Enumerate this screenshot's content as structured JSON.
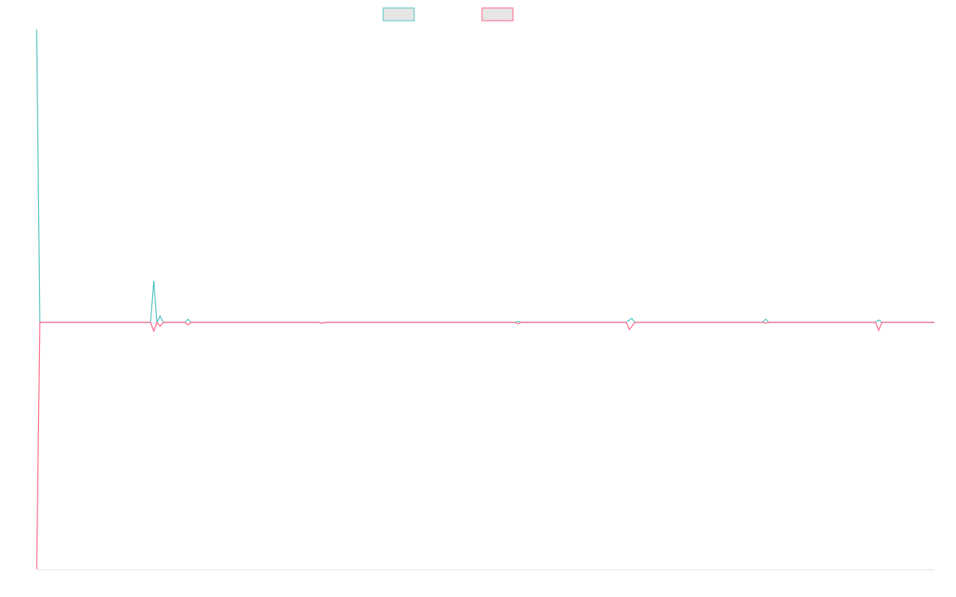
{
  "chart_data": {
    "type": "line",
    "xlim": [
      0,
      1127
    ],
    "ylim": [
      -310,
      368
    ],
    "series": [
      {
        "color": "#4bc0c0",
        "x": [
          0,
          4,
          143,
          147,
          151,
          155,
          159,
          186,
          190,
          194,
          354,
          358,
          362,
          600,
          604,
          608,
          740,
          747,
          751,
          911,
          915,
          919,
          1053,
          1057,
          1061,
          1127
        ],
        "values": [
          368,
          0,
          0,
          52,
          0,
          8,
          0,
          0,
          4,
          0,
          0,
          -1,
          0,
          0,
          1,
          0,
          0,
          5,
          0,
          0,
          4,
          0,
          0,
          3,
          0,
          0
        ]
      },
      {
        "color": "#ff6384",
        "x": [
          0,
          4,
          143,
          147,
          151,
          155,
          159,
          186,
          190,
          194,
          354,
          358,
          362,
          600,
          604,
          608,
          740,
          744,
          751,
          911,
          915,
          919,
          1053,
          1057,
          1061,
          1127
        ],
        "values": [
          -310,
          0,
          0,
          -11,
          0,
          -5,
          0,
          0,
          -3,
          0,
          0,
          -1,
          0,
          0,
          -2,
          0,
          0,
          -9,
          0,
          0,
          -1,
          0,
          0,
          -10,
          0,
          0
        ]
      }
    ]
  }
}
